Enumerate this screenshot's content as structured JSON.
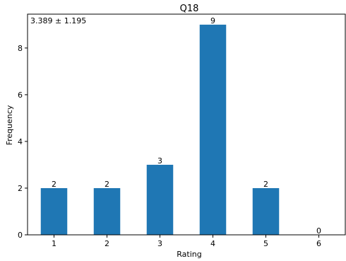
{
  "chart_data": {
    "type": "bar",
    "title": "Q18",
    "xlabel": "Rating",
    "ylabel": "Frequency",
    "annotation": "3.389 ± 1.195",
    "categories": [
      "1",
      "2",
      "3",
      "4",
      "5",
      "6"
    ],
    "values": [
      2,
      2,
      3,
      9,
      2,
      0
    ],
    "data_labels": [
      "2",
      "2",
      "3",
      "9",
      "2",
      "0"
    ],
    "ylim": [
      0,
      9.45
    ],
    "yticks": [
      0,
      2,
      4,
      6,
      8
    ],
    "ytick_labels": [
      "0",
      "2",
      "4",
      "6",
      "8"
    ],
    "grid": false,
    "colors": {
      "bar": "#1f77b4",
      "axis": "#000000"
    }
  }
}
